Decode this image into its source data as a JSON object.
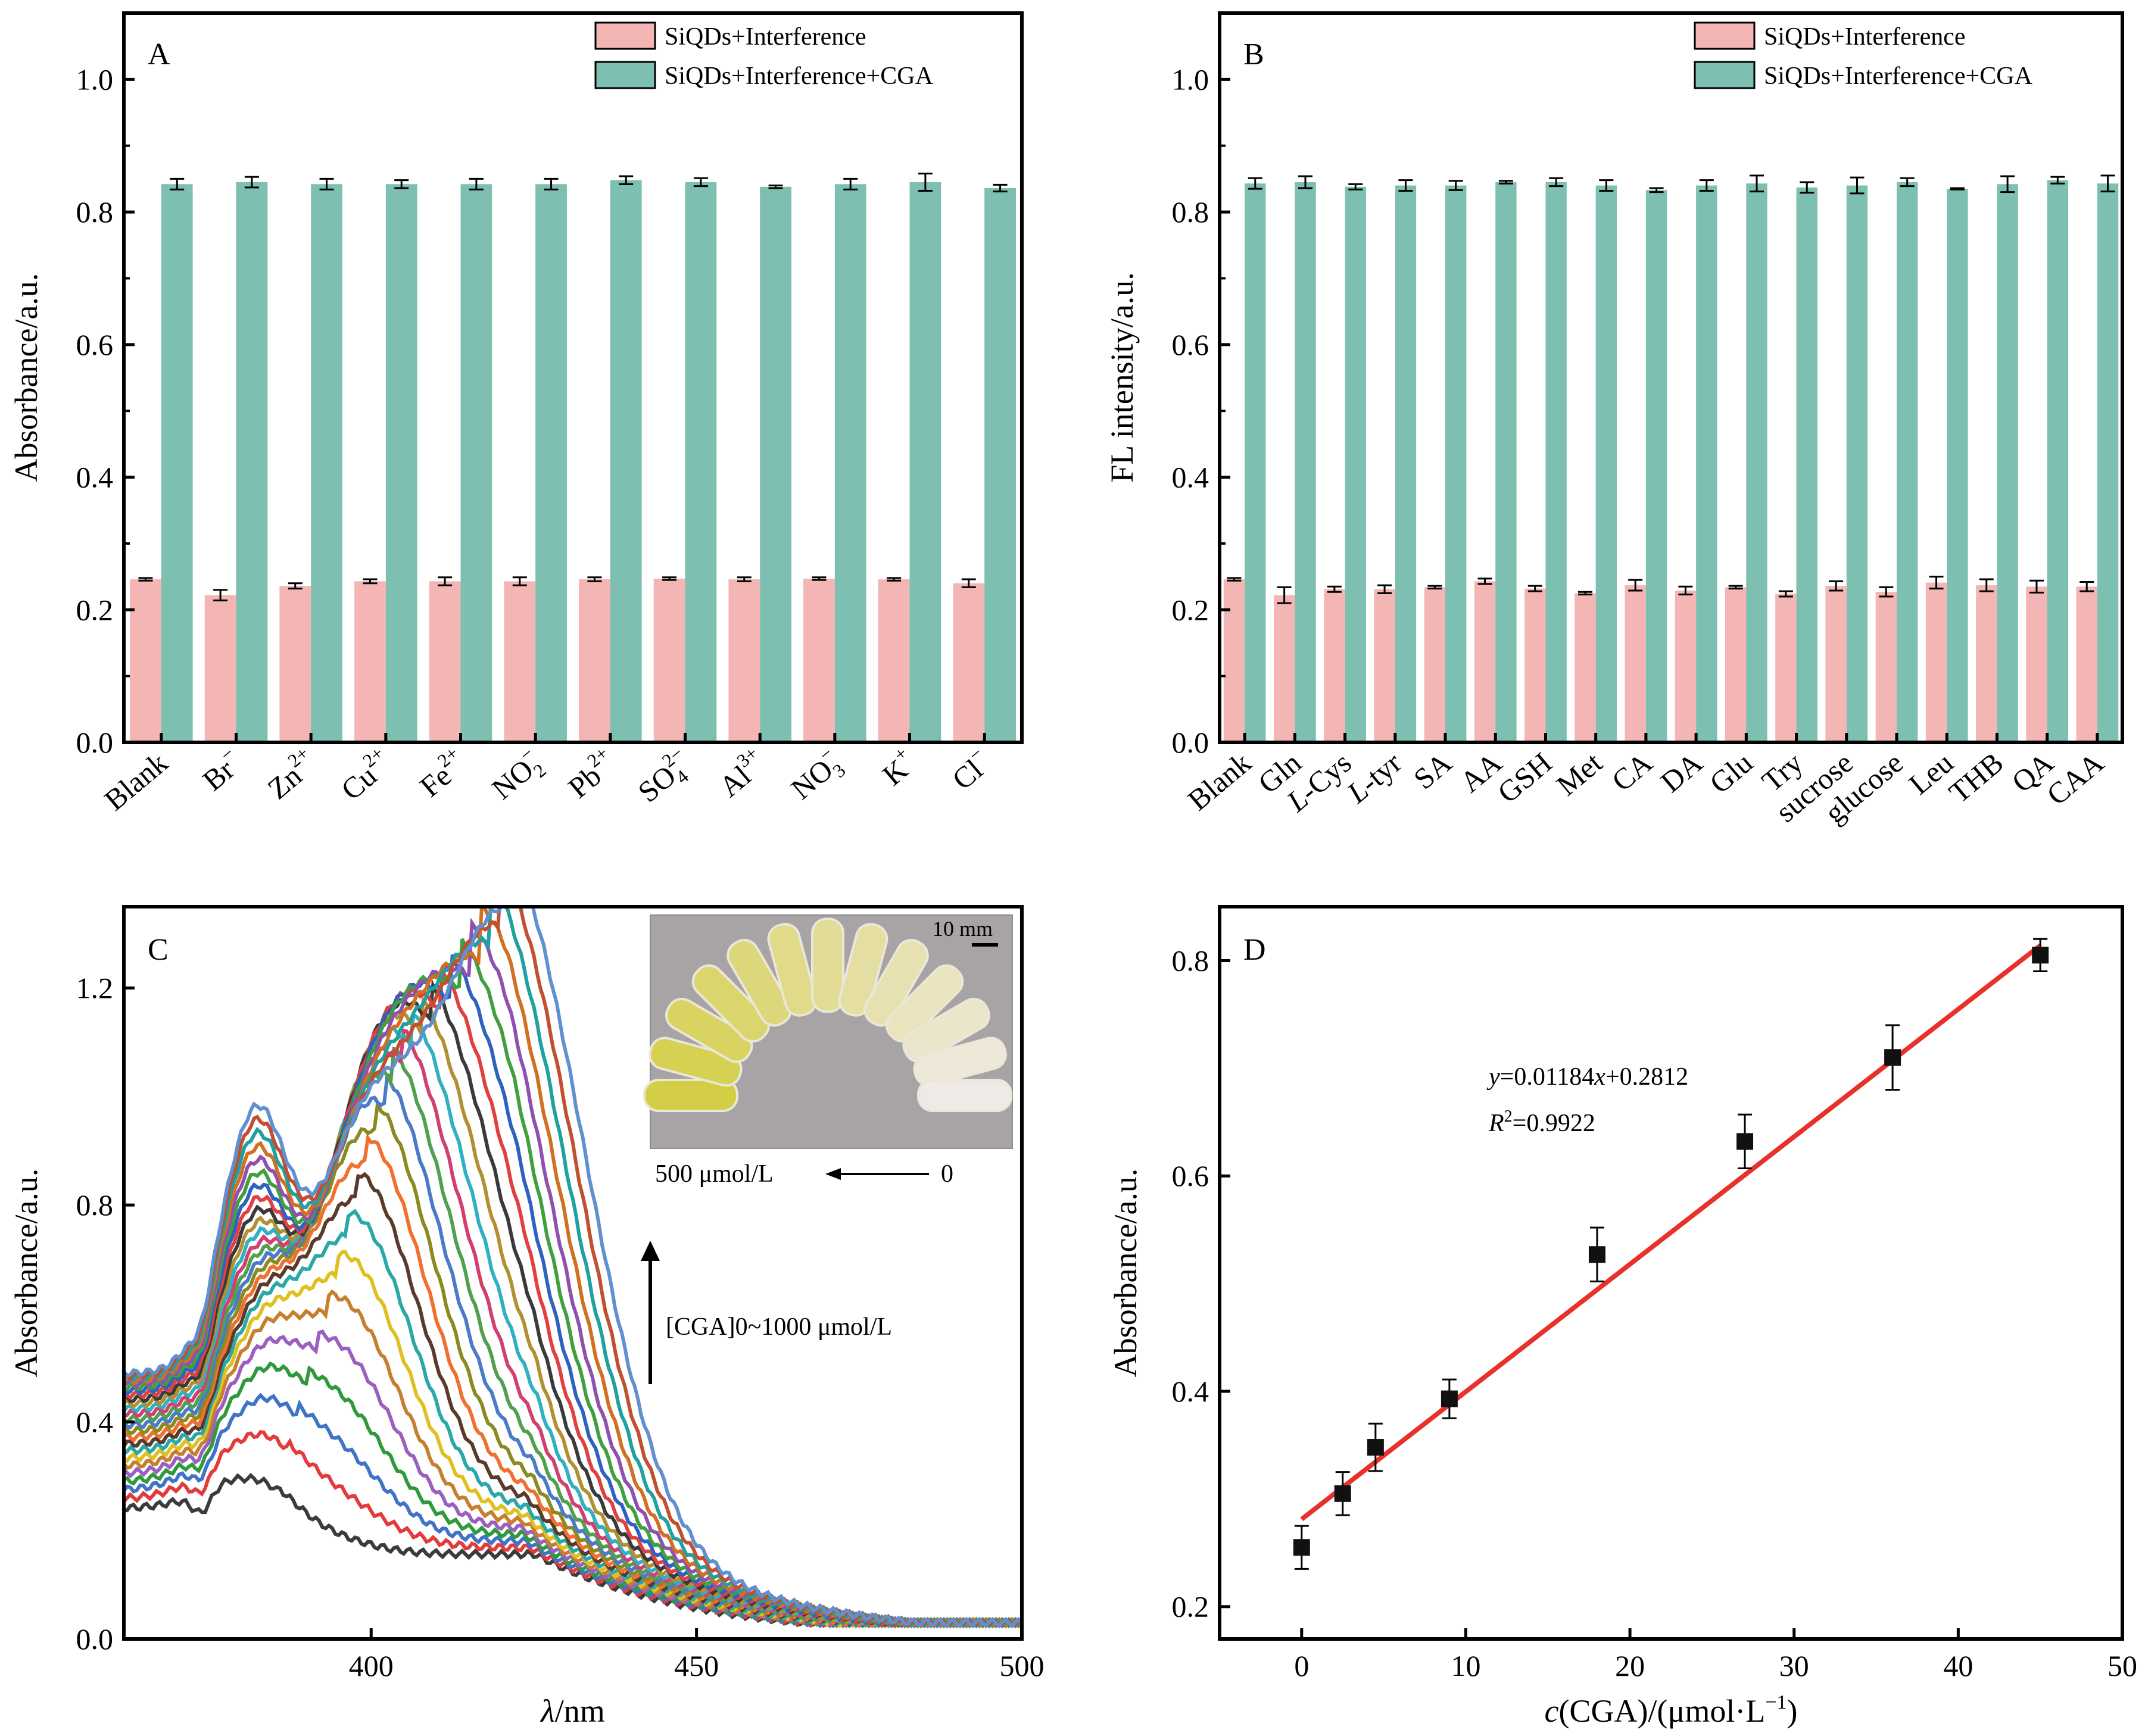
{
  "chart_data": [
    {
      "panel": "A",
      "type": "bar",
      "ylabel": "Absorbance/a.u.",
      "ylim": [
        0.0,
        1.1
      ],
      "yticks": [
        "0.0",
        "0.2",
        "0.4",
        "0.6",
        "0.8",
        "1.0"
      ],
      "categories": [
        {
          "base": "Blank",
          "sup": "",
          "sub": "",
          "ital": ""
        },
        {
          "base": "Br",
          "sup": "−",
          "sub": "",
          "ital": ""
        },
        {
          "base": "Zn",
          "sup": "2+",
          "sub": "",
          "ital": ""
        },
        {
          "base": "Cu",
          "sup": "2+",
          "sub": "",
          "ital": ""
        },
        {
          "base": "Fe",
          "sup": "2+",
          "sub": "",
          "ital": ""
        },
        {
          "base": "NO",
          "sup": "−",
          "sub": "2",
          "ital": ""
        },
        {
          "base": "Pb",
          "sup": "2+",
          "sub": "",
          "ital": ""
        },
        {
          "base": "SO",
          "sup": "2−",
          "sub": "4",
          "ital": ""
        },
        {
          "base": "Al",
          "sup": "3+",
          "sub": "",
          "ital": ""
        },
        {
          "base": "NO",
          "sup": "−",
          "sub": "3",
          "ital": ""
        },
        {
          "base": "K",
          "sup": "+",
          "sub": "",
          "ital": ""
        },
        {
          "base": "Cl",
          "sup": "−",
          "sub": "",
          "ital": ""
        }
      ],
      "series": [
        {
          "name": "SiQDs+Interference",
          "color": "#f4b6b4",
          "values": [
            0.246,
            0.222,
            0.236,
            0.243,
            0.243,
            0.243,
            0.246,
            0.247,
            0.246,
            0.247,
            0.246,
            0.24
          ],
          "errors": [
            0.002,
            0.008,
            0.004,
            0.003,
            0.006,
            0.006,
            0.003,
            0.002,
            0.003,
            0.002,
            0.002,
            0.006
          ]
        },
        {
          "name": "SiQDs+Interference+CGA",
          "color": "#7dbfb0",
          "values": [
            0.842,
            0.845,
            0.842,
            0.842,
            0.842,
            0.842,
            0.848,
            0.845,
            0.838,
            0.842,
            0.845,
            0.836
          ],
          "errors": [
            0.008,
            0.008,
            0.008,
            0.006,
            0.008,
            0.008,
            0.006,
            0.006,
            0.002,
            0.008,
            0.013,
            0.005
          ]
        }
      ],
      "legend_position": "top-right"
    },
    {
      "panel": "B",
      "type": "bar",
      "ylabel": "FL intensity/a.u.",
      "ylim": [
        0.0,
        1.1
      ],
      "yticks": [
        "0.0",
        "0.2",
        "0.4",
        "0.6",
        "0.8",
        "1.0"
      ],
      "categories": [
        {
          "base": "Blank",
          "sup": "",
          "sub": "",
          "ital": ""
        },
        {
          "base": "Gln",
          "sup": "",
          "sub": "",
          "ital": ""
        },
        {
          "base": "-Cys",
          "sup": "",
          "sub": "",
          "ital": "L"
        },
        {
          "base": "-tyr",
          "sup": "",
          "sub": "",
          "ital": "L"
        },
        {
          "base": "SA",
          "sup": "",
          "sub": "",
          "ital": ""
        },
        {
          "base": "AA",
          "sup": "",
          "sub": "",
          "ital": ""
        },
        {
          "base": "GSH",
          "sup": "",
          "sub": "",
          "ital": ""
        },
        {
          "base": "Met",
          "sup": "",
          "sub": "",
          "ital": ""
        },
        {
          "base": "CA",
          "sup": "",
          "sub": "",
          "ital": ""
        },
        {
          "base": "DA",
          "sup": "",
          "sub": "",
          "ital": ""
        },
        {
          "base": "Glu",
          "sup": "",
          "sub": "",
          "ital": ""
        },
        {
          "base": "Try",
          "sup": "",
          "sub": "",
          "ital": ""
        },
        {
          "base": "sucrose",
          "sup": "",
          "sub": "",
          "ital": ""
        },
        {
          "base": "glucose",
          "sup": "",
          "sub": "",
          "ital": ""
        },
        {
          "base": "Leu",
          "sup": "",
          "sub": "",
          "ital": ""
        },
        {
          "base": "THB",
          "sup": "",
          "sub": "",
          "ital": ""
        },
        {
          "base": "QA",
          "sup": "",
          "sub": "",
          "ital": ""
        },
        {
          "base": "CAA",
          "sup": "",
          "sub": "",
          "ital": ""
        }
      ],
      "series": [
        {
          "name": "SiQDs+Interference",
          "color": "#f4b6b4",
          "values": [
            0.246,
            0.222,
            0.231,
            0.231,
            0.234,
            0.243,
            0.232,
            0.225,
            0.237,
            0.229,
            0.234,
            0.224,
            0.236,
            0.227,
            0.241,
            0.237,
            0.235,
            0.235
          ],
          "errors": [
            0.002,
            0.012,
            0.004,
            0.006,
            0.002,
            0.004,
            0.004,
            0.002,
            0.008,
            0.006,
            0.002,
            0.004,
            0.007,
            0.007,
            0.009,
            0.009,
            0.009,
            0.007
          ]
        },
        {
          "name": "SiQDs+Interference+CGA",
          "color": "#7dbfb0",
          "values": [
            0.843,
            0.845,
            0.838,
            0.84,
            0.84,
            0.845,
            0.845,
            0.84,
            0.833,
            0.84,
            0.843,
            0.837,
            0.84,
            0.845,
            0.835,
            0.842,
            0.848,
            0.843
          ],
          "errors": [
            0.008,
            0.009,
            0.004,
            0.008,
            0.007,
            0.002,
            0.006,
            0.008,
            0.003,
            0.008,
            0.012,
            0.008,
            0.012,
            0.006,
            0.001,
            0.012,
            0.005,
            0.012
          ]
        }
      ],
      "legend_position": "top-right"
    },
    {
      "panel": "C",
      "type": "line",
      "xlabel_italic": "λ",
      "xlabel_rest": "/nm",
      "ylabel": "Absorbance/a.u.",
      "xlim": [
        362,
        500
      ],
      "ylim": [
        0.0,
        1.35
      ],
      "xticks": [
        "400",
        "450",
        "500"
      ],
      "yticks": [
        "0.0",
        "0.4",
        "0.8",
        "1.2"
      ],
      "arrow_label": "[CGA]0~1000 μmol/L",
      "colors": [
        "#3b3b3b",
        "#e33b3b",
        "#3f73c7",
        "#2e9a3a",
        "#9b5fc0",
        "#c57f2e",
        "#e0c020",
        "#2aa8a8",
        "#5a3a2a",
        "#f07030",
        "#8a8a20",
        "#4a7ac8",
        "#50a050",
        "#d04070",
        "#30b0c0",
        "#b09030",
        "#3a3a3a",
        "#e04040",
        "#3060c0",
        "#40a040",
        "#9050b0",
        "#d07020",
        "#20a0a0",
        "#c05030",
        "#6090d0"
      ],
      "inset": {
        "scale_label": "10 mm",
        "left_label": "500 μmol/L",
        "right_label": "0"
      }
    },
    {
      "panel": "D",
      "type": "scatter",
      "xlabel_italic": "c",
      "xlabel_rest": "(CGA)/(μmol·L",
      "xlabel_sup": "−1",
      "xlabel_end": ")",
      "ylabel": "Absorbance/a.u.",
      "xlim": [
        -5,
        50
      ],
      "ylim": [
        0.17,
        0.85
      ],
      "xticks": [
        "0",
        "10",
        "20",
        "30",
        "40",
        "50"
      ],
      "yticks": [
        "0.2",
        "0.4",
        "0.6",
        "0.8"
      ],
      "points": [
        {
          "x": 0,
          "y": 0.255,
          "err": 0.02
        },
        {
          "x": 2.5,
          "y": 0.305,
          "err": 0.02
        },
        {
          "x": 4.5,
          "y": 0.348,
          "err": 0.022
        },
        {
          "x": 9,
          "y": 0.393,
          "err": 0.018
        },
        {
          "x": 18,
          "y": 0.527,
          "err": 0.025
        },
        {
          "x": 27,
          "y": 0.632,
          "err": 0.025
        },
        {
          "x": 36,
          "y": 0.71,
          "err": 0.03
        },
        {
          "x": 45,
          "y": 0.805,
          "err": 0.015
        }
      ],
      "fit": {
        "slope": 0.01184,
        "intercept": 0.2812,
        "color": "#e8312b",
        "x_range": [
          0,
          45
        ]
      },
      "equation": {
        "y_var": "y",
        "eq_mid": "=0.01184",
        "x_var": "x",
        "eq_end": "+0.2812"
      },
      "r2": {
        "r_var": "R",
        "sup": "2",
        "value": "=0.9922"
      }
    }
  ]
}
